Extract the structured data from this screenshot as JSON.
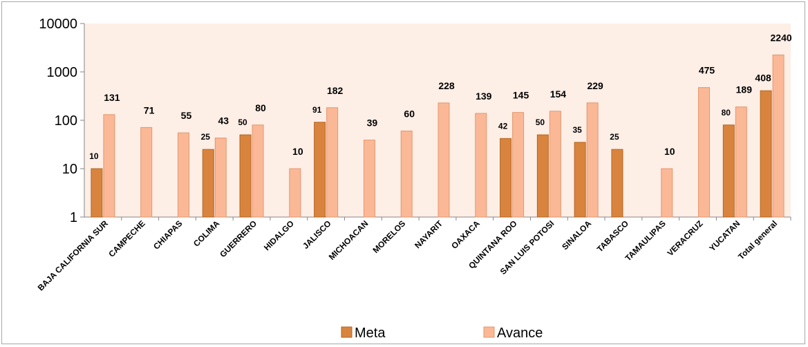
{
  "chart_data": {
    "type": "bar",
    "scale": "log",
    "ylim": [
      1,
      10000
    ],
    "yticks": [
      "1",
      "10",
      "100",
      "1000",
      "10000"
    ],
    "grid": false,
    "legend_position": "bottom",
    "categories": [
      "BAJA CALIFORNIA SUR",
      "CAMPECHE",
      "CHIAPAS",
      "COLIMA",
      "GUERRERO",
      "HIDALGO",
      "JALISCO",
      "MICHOACAN",
      "MORELOS",
      "NAYARIT",
      "OAXACA",
      "QUINTANA ROO",
      "SAN LUIS POTOSI",
      "SINALOA",
      "TABASCO",
      "TAMAULIPAS",
      "VERACRUZ",
      "YUCATAN",
      "Total general"
    ],
    "series": [
      {
        "name": "Meta",
        "color": "#d8843f",
        "values": [
          10,
          null,
          null,
          25,
          50,
          null,
          91,
          null,
          null,
          null,
          null,
          42,
          50,
          35,
          25,
          null,
          null,
          80,
          408
        ]
      },
      {
        "name": "Avance",
        "color": "#fab896",
        "values": [
          131,
          71,
          55,
          43,
          80,
          10,
          182,
          39,
          60,
          228,
          139,
          145,
          154,
          229,
          null,
          10,
          475,
          189,
          2240
        ]
      }
    ],
    "plot_background": "#fdeee6",
    "title": "",
    "xlabel": "",
    "ylabel": ""
  }
}
